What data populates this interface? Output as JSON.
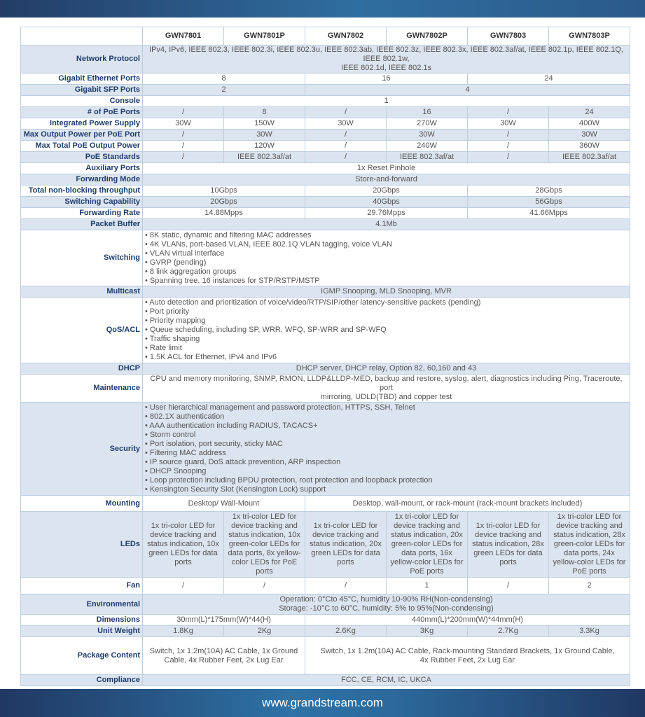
{
  "footer": {
    "url": "www.grandstream.com"
  },
  "header": [
    "",
    "GWN7801",
    "GWN7801P",
    "GWN7802",
    "GWN7802P",
    "GWN7803",
    "GWN7803P"
  ],
  "rows": [
    {
      "label": "Network Protocol",
      "shaded": true,
      "cells": [
        {
          "text": "IPv4, IPv6, IEEE 802.3, IEEE 802.3i, IEEE 802.3u, IEEE 802.3ab, IEEE 802.3z, IEEE 802.3x, IEEE 802.3af/at, IEEE 802.1p, IEEE 802.1Q, IEEE 802.1w,\nIEEE 802.1d, IEEE 802.1s",
          "span": 6
        }
      ]
    },
    {
      "label": "Gigabit Ethernet Ports",
      "shaded": false,
      "cells": [
        {
          "text": "8",
          "span": 2
        },
        {
          "text": "16",
          "span": 2
        },
        {
          "text": "24",
          "span": 2
        }
      ]
    },
    {
      "label": "Gigabit SFP Ports",
      "shaded": true,
      "cells": [
        {
          "text": "2",
          "span": 2
        },
        {
          "text": "4",
          "span": 4
        }
      ]
    },
    {
      "label": "Console",
      "shaded": false,
      "cells": [
        {
          "text": "1",
          "span": 6
        }
      ]
    },
    {
      "label": "# of PoE Ports",
      "shaded": true,
      "cells": [
        {
          "text": "/"
        },
        {
          "text": "8"
        },
        {
          "text": "/"
        },
        {
          "text": "16"
        },
        {
          "text": "/"
        },
        {
          "text": "24"
        }
      ]
    },
    {
      "label": "Integrated Power Supply",
      "shaded": false,
      "cells": [
        {
          "text": "30W"
        },
        {
          "text": "150W"
        },
        {
          "text": "30W"
        },
        {
          "text": "270W"
        },
        {
          "text": "30W"
        },
        {
          "text": "400W"
        }
      ]
    },
    {
      "label": "Max Output Power per PoE Port",
      "shaded": true,
      "cells": [
        {
          "text": "/"
        },
        {
          "text": "30W"
        },
        {
          "text": "/"
        },
        {
          "text": "30W"
        },
        {
          "text": "/"
        },
        {
          "text": "30W"
        }
      ]
    },
    {
      "label": "Max Total PoE Output Power",
      "shaded": false,
      "cells": [
        {
          "text": "/"
        },
        {
          "text": "120W"
        },
        {
          "text": "/"
        },
        {
          "text": "240W"
        },
        {
          "text": "/"
        },
        {
          "text": "360W"
        }
      ]
    },
    {
      "label": "PoE Standards",
      "shaded": true,
      "cells": [
        {
          "text": "/"
        },
        {
          "text": "IEEE 802.3af/at"
        },
        {
          "text": "/"
        },
        {
          "text": "IEEE 802.3af/at"
        },
        {
          "text": "/"
        },
        {
          "text": "IEEE 802.3af/at"
        }
      ]
    },
    {
      "label": "Auxiliary Ports",
      "shaded": false,
      "cells": [
        {
          "text": "1x Reset Pinhole",
          "span": 6
        }
      ]
    },
    {
      "label": "Forwarding Mode",
      "shaded": true,
      "cells": [
        {
          "text": "Store-and-forward",
          "span": 6
        }
      ]
    },
    {
      "label": "Total non-blocking throughput",
      "shaded": false,
      "cells": [
        {
          "text": "10Gbps",
          "span": 2
        },
        {
          "text": "20Gbps",
          "span": 2
        },
        {
          "text": "28Gbps",
          "span": 2
        }
      ]
    },
    {
      "label": "Switching Capability",
      "shaded": true,
      "cells": [
        {
          "text": "20Gbps",
          "span": 2
        },
        {
          "text": "40Gbps",
          "span": 2
        },
        {
          "text": "56Gbps",
          "span": 2
        }
      ]
    },
    {
      "label": "Forwarding Rate",
      "shaded": false,
      "cells": [
        {
          "text": "14.88Mpps",
          "span": 2
        },
        {
          "text": "29.76Mpps",
          "span": 2
        },
        {
          "text": "41.66Mpps",
          "span": 2
        }
      ]
    },
    {
      "label": "Packet Buffer",
      "shaded": true,
      "cells": [
        {
          "text": "4.1Mb",
          "span": 6
        }
      ]
    },
    {
      "label": "Switching",
      "shaded": false,
      "cells": [
        {
          "text": "• 8K static, dynamic and filtering MAC addresses\n• 4K VLANs, port-based VLAN, IEEE 802.1Q VLAN tagging, voice VLAN\n• VLAN virtual interface\n• GVRP (pending)\n• 8 link aggregation groups\n• Spanning tree, 16 instances for STP/RSTP/MSTP",
          "span": 6,
          "left": true
        }
      ]
    },
    {
      "label": "Multicast",
      "shaded": true,
      "cells": [
        {
          "text": "IGMP Snooping, MLD Snooping, MVR",
          "span": 6
        }
      ]
    },
    {
      "label": "QoS/ACL",
      "shaded": false,
      "cells": [
        {
          "text": "• Auto detection and prioritization of voice/video/RTP/SIP/other latency-sensitive packets (pending)\n• Port priority\n• Priority mapping\n• Queue scheduling, including SP, WRR, WFQ, SP-WRR and SP-WFQ\n• Traffic shaping\n• Rate limit\n• 1.5K ACL for Ethernet, IPv4 and IPv6",
          "span": 6,
          "left": true
        }
      ]
    },
    {
      "label": "DHCP",
      "shaded": true,
      "cells": [
        {
          "text": "DHCP server, DHCP relay, Option 82, 60,160 and 43",
          "span": 6
        }
      ]
    },
    {
      "label": "Maintenance",
      "shaded": false,
      "cells": [
        {
          "text": "CPU and memory monitoring, SNMP, RMON, LLDP&LLDP-MED, backup and restore, syslog, alert, diagnostics including Ping, Traceroute, port\nmirroring, UDLD(TBD) and copper test",
          "span": 6
        }
      ]
    },
    {
      "label": "Security",
      "shaded": true,
      "cells": [
        {
          "text": "• User hierarchical management and password protection, HTTPS, SSH, Telnet\n• 802.1X authentication\n• AAA authentication including RADIUS, TACACS+\n• Storm control\n• Port isolation, port security, sticky MAC\n• Filtering MAC address\n• IP source guard, DoS attack prevention, ARP inspection\n• DHCP Snooping\n• Loop protection including BPDU protection, root protection and loopback protection\n• Kensington Security Slot (Kensington Lock) support",
          "span": 6,
          "left": true
        }
      ]
    },
    {
      "label": "Mounting",
      "shaded": false,
      "cells": [
        {
          "text": "Desktop/ Wall-Mount",
          "span": 2
        },
        {
          "text": "Desktop, wall-mount, or rack-mount (rack-mount brackets included)",
          "span": 4
        }
      ]
    },
    {
      "label": "LEDs",
      "shaded": true,
      "cells": [
        {
          "text": "1x tri-color LED for device tracking and status indication, 10x green LEDs for data ports"
        },
        {
          "text": "1x tri-color LED for device tracking and status indication, 10x green-color LEDs for data ports, 8x yellow-color LEDs for PoE ports"
        },
        {
          "text": "1x tri-color LED for device tracking and status indication, 20x green LEDs for data ports"
        },
        {
          "text": "1x tri-color LED for device tracking and status indication, 20x green-color LEDs for data ports, 16x yellow-color LEDs for PoE ports"
        },
        {
          "text": "1x tri-color LED for device tracking and status indication, 28x green LEDs for data ports"
        },
        {
          "text": "1x tri-color LED for device tracking and status indication, 28x green-color LEDs for data ports, 24x yellow-color LEDs for PoE ports"
        }
      ]
    },
    {
      "label": "Fan",
      "shaded": false,
      "cells": [
        {
          "text": "/"
        },
        {
          "text": "/"
        },
        {
          "text": "/"
        },
        {
          "text": "1"
        },
        {
          "text": "/"
        },
        {
          "text": "2"
        }
      ]
    },
    {
      "label": "Environmental",
      "shaded": true,
      "cells": [
        {
          "text": "Operation: 0°Cto 45°C, humidity 10-90% RH(Non-condensing)\nStorage: -10°C to 60°C, humidity: 5% to 95%(Non-condensing)",
          "span": 6
        }
      ]
    },
    {
      "label": "Dimensions",
      "shaded": false,
      "cells": [
        {
          "text": "30mm(L)*175mm(W)*44(H)",
          "span": 2
        },
        {
          "text": "440mm(L)*200mm(W)*44mm(H)",
          "span": 4
        }
      ]
    },
    {
      "label": "Unit Weight",
      "shaded": true,
      "cells": [
        {
          "text": "1.8Kg"
        },
        {
          "text": "2Kg"
        },
        {
          "text": "2.6Kg"
        },
        {
          "text": "3Kg"
        },
        {
          "text": "2.7Kg"
        },
        {
          "text": "3.3Kg"
        }
      ]
    },
    {
      "label": "Package Content",
      "shaded": false,
      "cells": [
        {
          "text": "Switch, 1x 1.2m(10A) AC Cable, 1x Ground Cable, 4x Rubber Feet, 2x Lug Ear",
          "span": 2
        },
        {
          "text": "Switch, 1x 1.2m(10A) AC Cable, Rack-mounting Standard Brackets,  1x Ground Cable,\n4x Rubber Feet, 2x Lug Ear",
          "span": 4
        }
      ]
    },
    {
      "label": "Compliance",
      "shaded": true,
      "cells": [
        {
          "text": "FCC, CE, RCM, IC, UKCA",
          "span": 6
        }
      ]
    }
  ]
}
